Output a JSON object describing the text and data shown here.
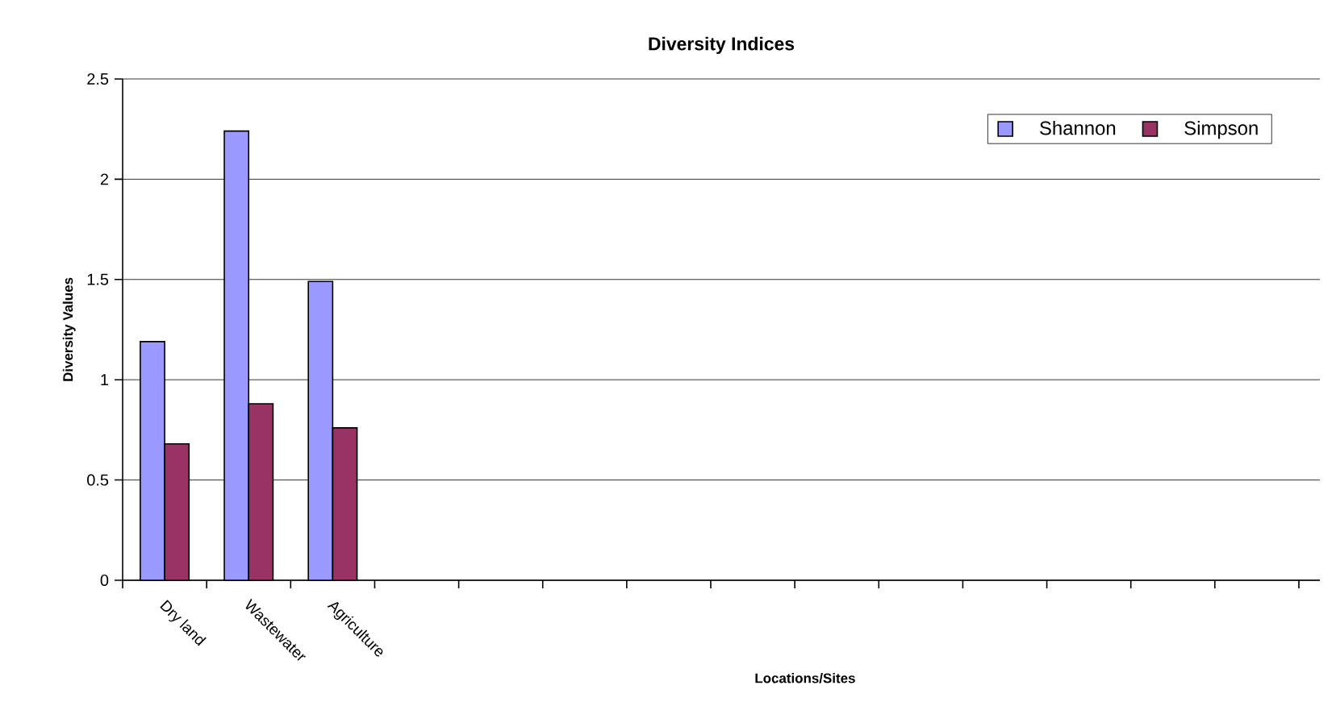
{
  "chart_data": {
    "type": "bar",
    "title": "Diversity Indices",
    "xlabel": "Locations/Sites",
    "ylabel": "Diversity Values",
    "categories": [
      "Dry land",
      "Wastewater",
      "Agriculture",
      null,
      null,
      null,
      null,
      null,
      null,
      null,
      null,
      null,
      null,
      null
    ],
    "series": [
      {
        "name": "Shannon",
        "color": "#9999ff",
        "values": [
          1.19,
          2.24,
          1.49,
          null,
          null,
          null,
          null,
          null,
          null,
          null,
          null,
          null,
          null,
          null
        ]
      },
      {
        "name": "Simpson",
        "color": "#993366",
        "values": [
          0.68,
          0.88,
          0.76,
          null,
          null,
          null,
          null,
          null,
          null,
          null,
          null,
          null,
          null,
          null
        ]
      }
    ],
    "ylim": [
      0,
      2.5
    ],
    "yticks": [
      0,
      0.5,
      1,
      1.5,
      2,
      2.5
    ],
    "grid": "y",
    "legend": "top right"
  }
}
